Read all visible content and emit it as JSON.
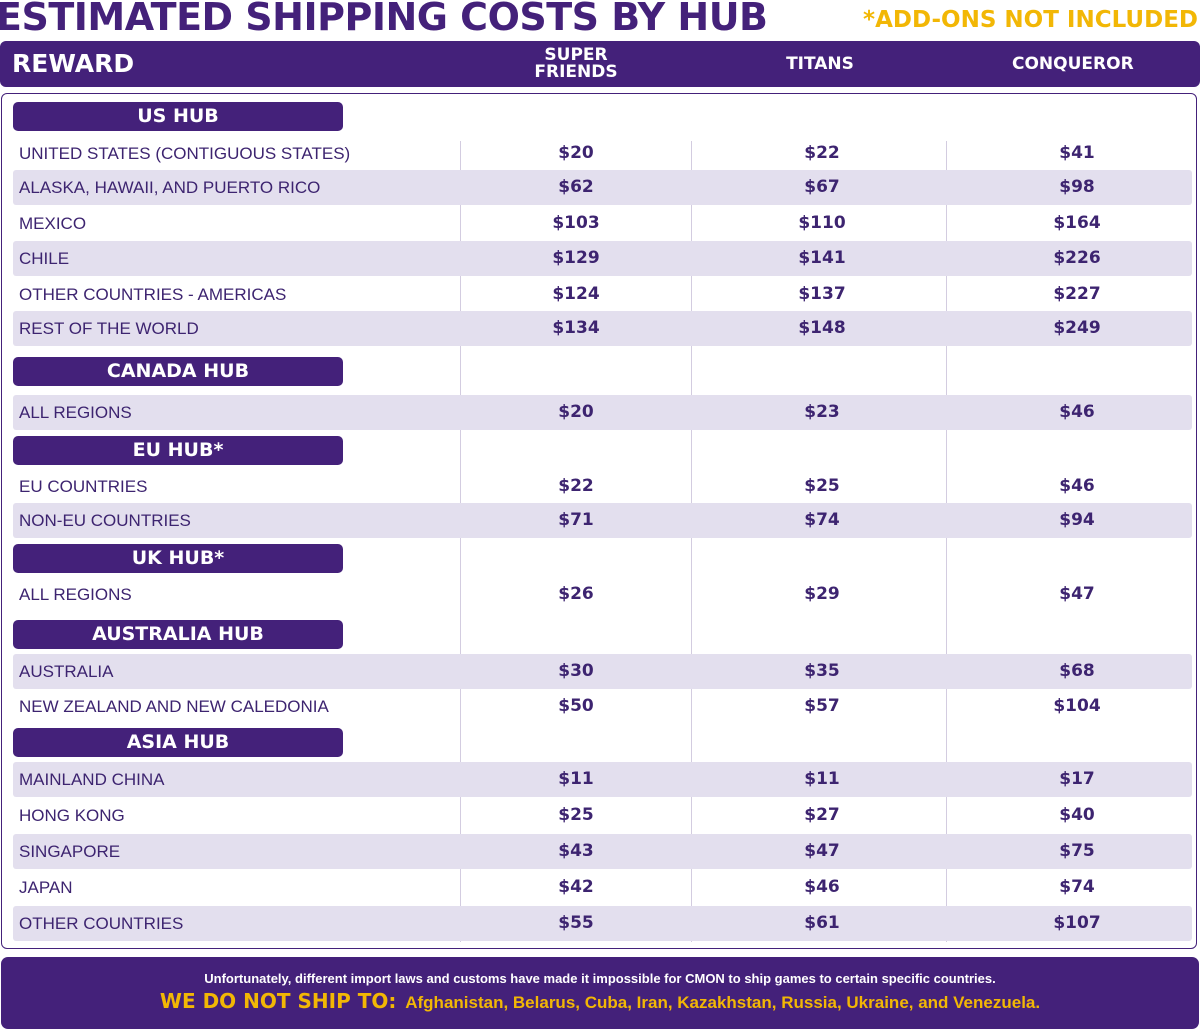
{
  "title": "ESTIMATED SHIPPING COSTS BY HUB",
  "note": "*ADD-ONS NOT INCLUDED",
  "header": {
    "reward": "REWARD",
    "columns": [
      "SUPER FRIENDS",
      "TITANS",
      "CONQUEROR"
    ]
  },
  "hubs": [
    {
      "name": "US HUB",
      "rows": [
        {
          "region": "UNITED STATES (CONTIGUOUS STATES)",
          "values": [
            "$20",
            "$22",
            "$41"
          ]
        },
        {
          "region": "ALASKA, HAWAII, AND PUERTO RICO",
          "values": [
            "$62",
            "$67",
            "$98"
          ]
        },
        {
          "region": "MEXICO",
          "values": [
            "$103",
            "$110",
            "$164"
          ]
        },
        {
          "region": "CHILE",
          "values": [
            "$129",
            "$141",
            "$226"
          ]
        },
        {
          "region": "OTHER COUNTRIES - AMERICAS",
          "values": [
            "$124",
            "$137",
            "$227"
          ]
        },
        {
          "region": "REST OF THE WORLD",
          "values": [
            "$134",
            "$148",
            "$249"
          ]
        }
      ]
    },
    {
      "name": "CANADA HUB",
      "rows": [
        {
          "region": "ALL REGIONS",
          "values": [
            "$20",
            "$23",
            "$46"
          ]
        }
      ]
    },
    {
      "name": "EU HUB*",
      "rows": [
        {
          "region": "EU COUNTRIES",
          "values": [
            "$22",
            "$25",
            "$46"
          ]
        },
        {
          "region": "NON-EU COUNTRIES",
          "values": [
            "$71",
            "$74",
            "$94"
          ]
        }
      ]
    },
    {
      "name": "UK HUB*",
      "rows": [
        {
          "region": "ALL REGIONS",
          "values": [
            "$26",
            "$29",
            "$47"
          ]
        }
      ]
    },
    {
      "name": "AUSTRALIA HUB",
      "rows": [
        {
          "region": "AUSTRALIA",
          "values": [
            "$30",
            "$35",
            "$68"
          ]
        },
        {
          "region": "NEW ZEALAND AND NEW CALEDONIA",
          "values": [
            "$50",
            "$57",
            "$104"
          ]
        }
      ]
    },
    {
      "name": "ASIA HUB",
      "rows": [
        {
          "region": "MAINLAND CHINA",
          "values": [
            "$11",
            "$11",
            "$17"
          ]
        },
        {
          "region": "HONG KONG",
          "values": [
            "$25",
            "$27",
            "$40"
          ]
        },
        {
          "region": "SINGAPORE",
          "values": [
            "$43",
            "$47",
            "$75"
          ]
        },
        {
          "region": "JAPAN",
          "values": [
            "$42",
            "$46",
            "$74"
          ]
        },
        {
          "region": "OTHER COUNTRIES",
          "values": [
            "$55",
            "$61",
            "$107"
          ]
        }
      ]
    }
  ],
  "footer": {
    "line1": "Unfortunately, different import laws and customs have made it impossible for CMON to ship games to certain specific countries.",
    "no_ship_label": "WE DO NOT SHIP TO",
    "countries": "Afghanistan, Belarus, Cuba, Iran, Kazakhstan, Russia, Ukraine, and Venezuela."
  },
  "colors": {
    "purple": "#44217a",
    "shade": "#e3dfee",
    "accent": "#f2b705"
  }
}
